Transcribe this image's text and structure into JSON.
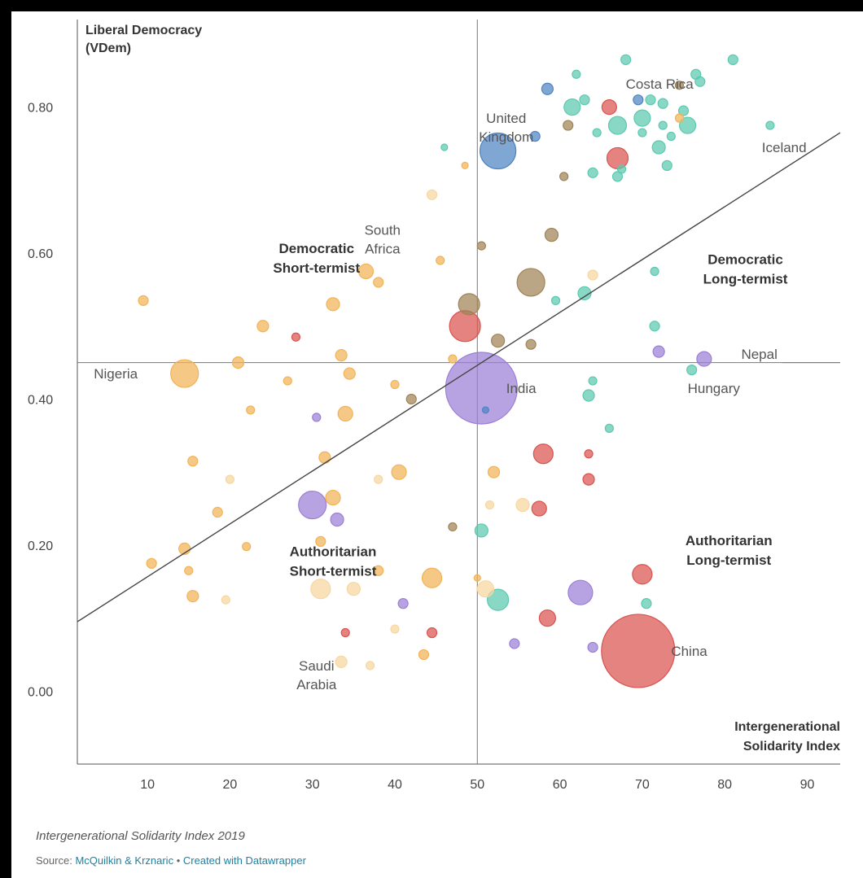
{
  "caption": "Intergenerational Solidarity Index 2019",
  "source": {
    "label": "Source:",
    "authors": "McQuilkin & Krznaric",
    "separator": "•",
    "tool": "Created with Datawrapper"
  },
  "colors": {
    "orange": "#f2b356",
    "peach": "#f7d7a0",
    "red": "#d9534f",
    "purple": "#9b7fd6",
    "teal": "#5cc9b0",
    "brown": "#a08356",
    "blue": "#4f83c3",
    "axis": "#777777"
  },
  "chart_data": {
    "type": "scatter",
    "title": "",
    "xlabel": "Intergenerational Solidarity Index",
    "ylabel": "Liberal Democracy (VDem)",
    "ylabel_lines": [
      "Liberal Democracy",
      "(VDem)"
    ],
    "xlabel_lines": [
      "Intergenerational",
      "Solidarity Index"
    ],
    "xlim": [
      1.5,
      94
    ],
    "ylim": [
      -0.1,
      0.92
    ],
    "x_ticks": [
      10,
      20,
      30,
      40,
      50,
      60,
      70,
      80,
      90
    ],
    "y_ticks": [
      0.0,
      0.2,
      0.4,
      0.6,
      0.8
    ],
    "y_tick_labels": [
      "0.00",
      "0.20",
      "0.40",
      "0.60",
      "0.80"
    ],
    "reference_lines": {
      "x": 50,
      "y": 0.45
    },
    "trend_line": {
      "from": [
        1.5,
        0.095
      ],
      "to": [
        94,
        0.765
      ]
    },
    "quadrant_labels": [
      {
        "lines": [
          "Democratic",
          "Short-termist"
        ],
        "x": 30.5,
        "y": 0.6
      },
      {
        "lines": [
          "Democratic",
          "Long-termist"
        ],
        "x": 82.5,
        "y": 0.585
      },
      {
        "lines": [
          "Authoritarian",
          "Short-termist"
        ],
        "x": 32.5,
        "y": 0.185
      },
      {
        "lines": [
          "Authoritarian",
          "Long-termist"
        ],
        "x": 80.5,
        "y": 0.2
      }
    ],
    "points": [
      {
        "x": 69.5,
        "y": 0.055,
        "size": 45,
        "color": "red",
        "label": "China",
        "lx": 73.5,
        "ly": 0.055
      },
      {
        "x": 50.5,
        "y": 0.415,
        "size": 44,
        "color": "purple",
        "label": "India",
        "lx": 53.5,
        "ly": 0.415
      },
      {
        "x": 52.5,
        "y": 0.74,
        "size": 22,
        "color": "blue",
        "label": "United Kingdom",
        "label_lines": [
          "United",
          "Kingdom"
        ],
        "lx": 53.5,
        "ly": 0.785
      },
      {
        "x": 14.5,
        "y": 0.435,
        "size": 17,
        "color": "orange",
        "label": "Nigeria",
        "lx": 3.5,
        "ly": 0.435
      },
      {
        "x": 77.5,
        "y": 0.455,
        "size": 9,
        "color": "purple",
        "label": "Nepal",
        "lx": 82,
        "ly": 0.462
      },
      {
        "x": 76,
        "y": 0.44,
        "size": 6,
        "color": "teal",
        "label": "Hungary",
        "lx": 75.5,
        "ly": 0.415
      },
      {
        "x": 85.5,
        "y": 0.775,
        "size": 5,
        "color": "teal",
        "label": "Iceland",
        "lx": 84.5,
        "ly": 0.745
      },
      {
        "x": 74.5,
        "y": 0.83,
        "size": 5,
        "color": "brown",
        "label": "Costa Rica",
        "lx": 68,
        "ly": 0.832
      },
      {
        "x": 36.5,
        "y": 0.575,
        "size": 9,
        "color": "orange",
        "label": "South Africa",
        "label_lines": [
          "South",
          "Africa"
        ],
        "lx": 38.5,
        "ly": 0.632
      },
      {
        "x": 33.5,
        "y": 0.04,
        "size": 7,
        "color": "peach",
        "label": "Saudi Arabia",
        "label_lines": [
          "Saudi",
          "Arabia"
        ],
        "lx": 30.5,
        "ly": 0.035
      },
      {
        "x": 9.5,
        "y": 0.535,
        "size": 6,
        "color": "orange"
      },
      {
        "x": 10.5,
        "y": 0.175,
        "size": 6,
        "color": "orange"
      },
      {
        "x": 14.5,
        "y": 0.195,
        "size": 7,
        "color": "orange"
      },
      {
        "x": 15,
        "y": 0.165,
        "size": 5,
        "color": "orange"
      },
      {
        "x": 15.5,
        "y": 0.13,
        "size": 7,
        "color": "orange"
      },
      {
        "x": 15.5,
        "y": 0.315,
        "size": 6,
        "color": "orange"
      },
      {
        "x": 18.5,
        "y": 0.245,
        "size": 6,
        "color": "orange"
      },
      {
        "x": 20,
        "y": 0.29,
        "size": 5,
        "color": "peach"
      },
      {
        "x": 19.5,
        "y": 0.125,
        "size": 5,
        "color": "peach"
      },
      {
        "x": 21,
        "y": 0.45,
        "size": 7,
        "color": "orange"
      },
      {
        "x": 22,
        "y": 0.198,
        "size": 5,
        "color": "orange"
      },
      {
        "x": 22.5,
        "y": 0.385,
        "size": 5,
        "color": "orange"
      },
      {
        "x": 24,
        "y": 0.5,
        "size": 7,
        "color": "orange"
      },
      {
        "x": 27,
        "y": 0.425,
        "size": 5,
        "color": "orange"
      },
      {
        "x": 28,
        "y": 0.485,
        "size": 5,
        "color": "red"
      },
      {
        "x": 30,
        "y": 0.255,
        "size": 17,
        "color": "purple"
      },
      {
        "x": 30.5,
        "y": 0.375,
        "size": 5,
        "color": "purple"
      },
      {
        "x": 31,
        "y": 0.205,
        "size": 6,
        "color": "orange"
      },
      {
        "x": 31,
        "y": 0.14,
        "size": 12,
        "color": "peach"
      },
      {
        "x": 31.5,
        "y": 0.32,
        "size": 7,
        "color": "orange"
      },
      {
        "x": 32.5,
        "y": 0.265,
        "size": 9,
        "color": "orange"
      },
      {
        "x": 32.5,
        "y": 0.53,
        "size": 8,
        "color": "orange"
      },
      {
        "x": 33,
        "y": 0.235,
        "size": 8,
        "color": "purple"
      },
      {
        "x": 33.5,
        "y": 0.46,
        "size": 7,
        "color": "orange"
      },
      {
        "x": 34,
        "y": 0.08,
        "size": 5,
        "color": "red"
      },
      {
        "x": 34,
        "y": 0.38,
        "size": 9,
        "color": "orange"
      },
      {
        "x": 34.5,
        "y": 0.435,
        "size": 7,
        "color": "orange"
      },
      {
        "x": 35,
        "y": 0.14,
        "size": 8,
        "color": "peach"
      },
      {
        "x": 37,
        "y": 0.035,
        "size": 5,
        "color": "peach"
      },
      {
        "x": 38,
        "y": 0.165,
        "size": 6,
        "color": "orange"
      },
      {
        "x": 38,
        "y": 0.29,
        "size": 5,
        "color": "peach"
      },
      {
        "x": 38,
        "y": 0.56,
        "size": 6,
        "color": "orange"
      },
      {
        "x": 40,
        "y": 0.42,
        "size": 5,
        "color": "orange"
      },
      {
        "x": 40,
        "y": 0.085,
        "size": 5,
        "color": "peach"
      },
      {
        "x": 40.5,
        "y": 0.3,
        "size": 9,
        "color": "orange"
      },
      {
        "x": 41,
        "y": 0.12,
        "size": 6,
        "color": "purple"
      },
      {
        "x": 42,
        "y": 0.4,
        "size": 6,
        "color": "brown"
      },
      {
        "x": 43.5,
        "y": 0.05,
        "size": 6,
        "color": "orange"
      },
      {
        "x": 44.5,
        "y": 0.155,
        "size": 12,
        "color": "orange"
      },
      {
        "x": 44.5,
        "y": 0.68,
        "size": 6,
        "color": "peach"
      },
      {
        "x": 44.5,
        "y": 0.08,
        "size": 6,
        "color": "red"
      },
      {
        "x": 45.5,
        "y": 0.59,
        "size": 5,
        "color": "orange"
      },
      {
        "x": 46,
        "y": 0.745,
        "size": 4,
        "color": "teal"
      },
      {
        "x": 47,
        "y": 0.225,
        "size": 5,
        "color": "brown"
      },
      {
        "x": 47,
        "y": 0.455,
        "size": 5,
        "color": "orange"
      },
      {
        "x": 48.5,
        "y": 0.72,
        "size": 4,
        "color": "orange"
      },
      {
        "x": 48.5,
        "y": 0.5,
        "size": 19,
        "color": "red"
      },
      {
        "x": 49,
        "y": 0.53,
        "size": 13,
        "color": "brown"
      },
      {
        "x": 50,
        "y": 0.155,
        "size": 4,
        "color": "orange"
      },
      {
        "x": 50.5,
        "y": 0.61,
        "size": 5,
        "color": "brown"
      },
      {
        "x": 51,
        "y": 0.385,
        "size": 4,
        "color": "blue"
      },
      {
        "x": 50.5,
        "y": 0.22,
        "size": 8,
        "color": "teal"
      },
      {
        "x": 51,
        "y": 0.14,
        "size": 10,
        "color": "peach"
      },
      {
        "x": 51.5,
        "y": 0.255,
        "size": 5,
        "color": "peach"
      },
      {
        "x": 52,
        "y": 0.3,
        "size": 7,
        "color": "orange"
      },
      {
        "x": 52.5,
        "y": 0.125,
        "size": 13,
        "color": "teal"
      },
      {
        "x": 52.5,
        "y": 0.48,
        "size": 8,
        "color": "brown"
      },
      {
        "x": 54.5,
        "y": 0.065,
        "size": 6,
        "color": "purple"
      },
      {
        "x": 55.5,
        "y": 0.255,
        "size": 8,
        "color": "peach"
      },
      {
        "x": 56.5,
        "y": 0.475,
        "size": 6,
        "color": "brown"
      },
      {
        "x": 56.5,
        "y": 0.56,
        "size": 17,
        "color": "brown"
      },
      {
        "x": 57,
        "y": 0.76,
        "size": 6,
        "color": "blue"
      },
      {
        "x": 57.5,
        "y": 0.25,
        "size": 9,
        "color": "red"
      },
      {
        "x": 58,
        "y": 0.325,
        "size": 12,
        "color": "red"
      },
      {
        "x": 58.5,
        "y": 0.1,
        "size": 10,
        "color": "red"
      },
      {
        "x": 58.5,
        "y": 0.825,
        "size": 7,
        "color": "blue"
      },
      {
        "x": 59,
        "y": 0.625,
        "size": 8,
        "color": "brown"
      },
      {
        "x": 59.5,
        "y": 0.535,
        "size": 5,
        "color": "teal"
      },
      {
        "x": 60.5,
        "y": 0.705,
        "size": 5,
        "color": "brown"
      },
      {
        "x": 61,
        "y": 0.775,
        "size": 6,
        "color": "brown"
      },
      {
        "x": 61.5,
        "y": 0.8,
        "size": 10,
        "color": "teal"
      },
      {
        "x": 62,
        "y": 0.845,
        "size": 5,
        "color": "teal"
      },
      {
        "x": 62.5,
        "y": 0.135,
        "size": 15,
        "color": "purple"
      },
      {
        "x": 63,
        "y": 0.81,
        "size": 6,
        "color": "teal"
      },
      {
        "x": 63,
        "y": 0.545,
        "size": 8,
        "color": "teal"
      },
      {
        "x": 63.5,
        "y": 0.405,
        "size": 7,
        "color": "teal"
      },
      {
        "x": 63.5,
        "y": 0.29,
        "size": 7,
        "color": "red"
      },
      {
        "x": 63.5,
        "y": 0.325,
        "size": 5,
        "color": "red"
      },
      {
        "x": 64,
        "y": 0.71,
        "size": 6,
        "color": "teal"
      },
      {
        "x": 64,
        "y": 0.06,
        "size": 6,
        "color": "purple"
      },
      {
        "x": 64,
        "y": 0.425,
        "size": 5,
        "color": "teal"
      },
      {
        "x": 64,
        "y": 0.57,
        "size": 6,
        "color": "peach"
      },
      {
        "x": 64.5,
        "y": 0.765,
        "size": 5,
        "color": "teal"
      },
      {
        "x": 66,
        "y": 0.8,
        "size": 9,
        "color": "red"
      },
      {
        "x": 66,
        "y": 0.36,
        "size": 5,
        "color": "teal"
      },
      {
        "x": 67,
        "y": 0.73,
        "size": 13,
        "color": "red"
      },
      {
        "x": 67,
        "y": 0.775,
        "size": 11,
        "color": "teal"
      },
      {
        "x": 67,
        "y": 0.705,
        "size": 6,
        "color": "teal"
      },
      {
        "x": 67.5,
        "y": 0.715,
        "size": 5,
        "color": "teal"
      },
      {
        "x": 68,
        "y": 0.865,
        "size": 6,
        "color": "teal"
      },
      {
        "x": 69.5,
        "y": 0.81,
        "size": 6,
        "color": "blue"
      },
      {
        "x": 70,
        "y": 0.785,
        "size": 10,
        "color": "teal"
      },
      {
        "x": 70,
        "y": 0.16,
        "size": 12,
        "color": "red"
      },
      {
        "x": 70,
        "y": 0.765,
        "size": 5,
        "color": "teal"
      },
      {
        "x": 70.5,
        "y": 0.12,
        "size": 6,
        "color": "teal"
      },
      {
        "x": 71,
        "y": 0.81,
        "size": 6,
        "color": "teal"
      },
      {
        "x": 71.5,
        "y": 0.5,
        "size": 6,
        "color": "teal"
      },
      {
        "x": 71.5,
        "y": 0.575,
        "size": 5,
        "color": "teal"
      },
      {
        "x": 72,
        "y": 0.745,
        "size": 8,
        "color": "teal"
      },
      {
        "x": 72,
        "y": 0.465,
        "size": 7,
        "color": "purple"
      },
      {
        "x": 72.5,
        "y": 0.805,
        "size": 6,
        "color": "teal"
      },
      {
        "x": 72.5,
        "y": 0.775,
        "size": 5,
        "color": "teal"
      },
      {
        "x": 73,
        "y": 0.72,
        "size": 6,
        "color": "teal"
      },
      {
        "x": 73.5,
        "y": 0.76,
        "size": 5,
        "color": "teal"
      },
      {
        "x": 74.5,
        "y": 0.785,
        "size": 5,
        "color": "orange"
      },
      {
        "x": 75,
        "y": 0.795,
        "size": 6,
        "color": "teal"
      },
      {
        "x": 75.5,
        "y": 0.775,
        "size": 10,
        "color": "teal"
      },
      {
        "x": 76.5,
        "y": 0.845,
        "size": 6,
        "color": "teal"
      },
      {
        "x": 77,
        "y": 0.835,
        "size": 6,
        "color": "teal"
      },
      {
        "x": 81,
        "y": 0.865,
        "size": 6,
        "color": "teal"
      }
    ]
  }
}
